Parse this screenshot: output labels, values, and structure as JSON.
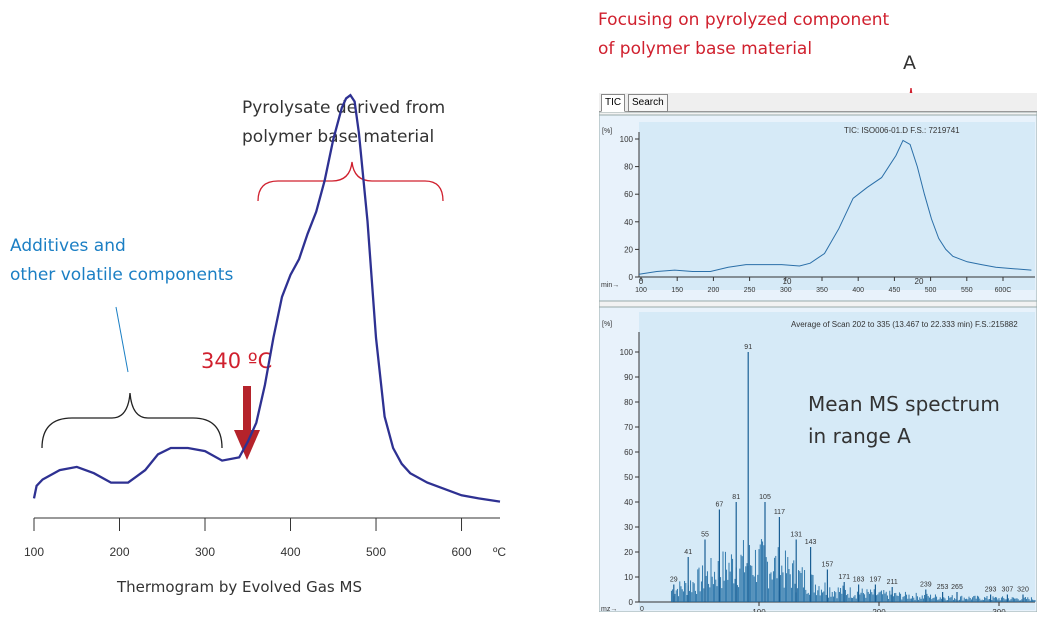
{
  "left": {
    "annotations": {
      "pyrolysate": [
        "Pyrolysate derived from",
        "polymer base material"
      ],
      "additives": [
        "Additives and",
        "other volatile components"
      ],
      "temp_marker": "340 ºC",
      "xlabel": "Thermogram by Evolved Gas MS",
      "unit": "ºC"
    },
    "colors": {
      "curve": "#2e3192",
      "red": "#d0202e",
      "blue": "#1b7fc4",
      "marker": "#b5232b"
    }
  },
  "right": {
    "heading": [
      "Focusing on pyrolyzed component",
      "of polymer base material"
    ],
    "range_label": "A",
    "tabs": [
      "TIC",
      "Search"
    ],
    "spectrum_label": [
      "Mean MS spectrum",
      "in range A"
    ]
  },
  "chart_data": [
    {
      "type": "line",
      "title": "",
      "xlabel": "Thermogram by Evolved Gas MS",
      "x_unit": "ºC",
      "xlim": [
        100,
        645
      ],
      "xticks": [
        100,
        200,
        300,
        400,
        500,
        600
      ],
      "grid": false,
      "series": [
        {
          "x": [
            100,
            103,
            110,
            130,
            150,
            170,
            190,
            210,
            220,
            230,
            245,
            260,
            280,
            300,
            320,
            340,
            350,
            360,
            370,
            380,
            390,
            400,
            410,
            420,
            430,
            440,
            450,
            460,
            465,
            470,
            475,
            480,
            490,
            500,
            510,
            520,
            530,
            540,
            560,
            580,
            600,
            620,
            645
          ],
          "y": [
            4,
            8,
            10,
            13,
            14,
            12,
            9,
            9,
            11,
            13,
            18,
            20,
            20,
            19,
            16,
            17,
            22,
            28,
            40,
            55,
            68,
            75,
            80,
            88,
            95,
            105,
            118,
            128,
            131,
            132,
            130,
            120,
            92,
            55,
            30,
            20,
            15,
            12,
            9,
            7,
            5,
            4,
            3
          ]
        }
      ]
    },
    {
      "type": "line",
      "title": "TIC: ISO006-01.D  F.S.: 7219741",
      "ylabel": "[%]",
      "ylim": [
        0,
        100
      ],
      "yticks": [
        0,
        20,
        40,
        60,
        80,
        100
      ],
      "x_top_label": "min→",
      "x_top_ticks": [
        0,
        10,
        20
      ],
      "x_bottom_ticks": [
        "100",
        "150",
        "200",
        "250",
        "300",
        "350",
        "400",
        "450",
        "500",
        "550",
        "600C"
      ],
      "series": [
        {
          "x": [
            100,
            125,
            150,
            175,
            200,
            225,
            250,
            275,
            300,
            325,
            340,
            360,
            380,
            400,
            420,
            440,
            460,
            470,
            480,
            490,
            500,
            510,
            520,
            530,
            540,
            560,
            580,
            600,
            625,
            650
          ],
          "y": [
            2,
            4,
            5,
            4,
            4,
            7,
            9,
            9,
            9,
            8,
            10,
            17,
            35,
            57,
            65,
            72,
            88,
            99,
            96,
            80,
            60,
            42,
            28,
            20,
            15,
            11,
            9,
            7,
            6,
            5
          ]
        }
      ]
    },
    {
      "type": "bar",
      "title": "Average of Scan 202 to 335 (13.467 to 22.333 min)  F.S.:215882",
      "ylabel": "[%]",
      "xlabel": "m/z",
      "ylim": [
        0,
        100
      ],
      "yticks": [
        0,
        10,
        20,
        30,
        40,
        50,
        60,
        70,
        80,
        90,
        100
      ],
      "xlim": [
        0,
        330
      ],
      "xticks": [
        100,
        200,
        300
      ],
      "peaks": [
        {
          "mz": 29,
          "v": 7,
          "label": "29"
        },
        {
          "mz": 41,
          "v": 18,
          "label": "41"
        },
        {
          "mz": 55,
          "v": 25,
          "label": "55"
        },
        {
          "mz": 67,
          "v": 37,
          "label": "67"
        },
        {
          "mz": 81,
          "v": 40,
          "label": "81"
        },
        {
          "mz": 91,
          "v": 100,
          "label": "91"
        },
        {
          "mz": 105,
          "v": 40,
          "label": "105"
        },
        {
          "mz": 117,
          "v": 34,
          "label": "117"
        },
        {
          "mz": 131,
          "v": 25,
          "label": "131"
        },
        {
          "mz": 143,
          "v": 22,
          "label": "143"
        },
        {
          "mz": 157,
          "v": 13,
          "label": "157"
        },
        {
          "mz": 171,
          "v": 8,
          "label": "171"
        },
        {
          "mz": 183,
          "v": 7,
          "label": "183"
        },
        {
          "mz": 197,
          "v": 7,
          "label": "197"
        },
        {
          "mz": 211,
          "v": 6,
          "label": "211"
        },
        {
          "mz": 239,
          "v": 5,
          "label": "239"
        },
        {
          "mz": 253,
          "v": 4,
          "label": "253"
        },
        {
          "mz": 265,
          "v": 4,
          "label": "265"
        },
        {
          "mz": 293,
          "v": 3,
          "label": "293"
        },
        {
          "mz": 307,
          "v": 3,
          "label": "307"
        },
        {
          "mz": 320,
          "v": 3,
          "label": "320"
        }
      ]
    }
  ]
}
